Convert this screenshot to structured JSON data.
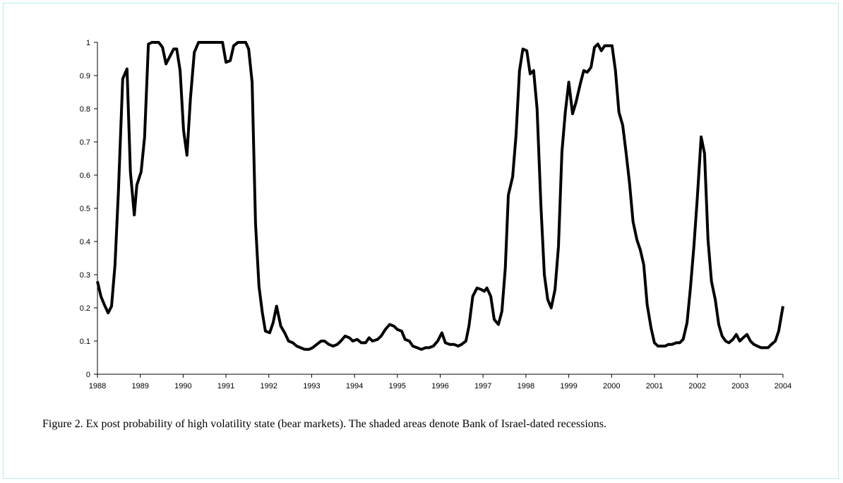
{
  "chart_data": {
    "type": "line",
    "caption": "Figure 2. Ex post probability of high volatility state (bear markets). The shaded areas denote Bank of Israel-dated recessions.",
    "x": [
      1988.0,
      1988.08,
      1988.16,
      1988.25,
      1988.33,
      1988.41,
      1988.49,
      1988.59,
      1988.69,
      1988.77,
      1988.86,
      1988.92,
      1989.02,
      1989.1,
      1989.19,
      1989.27,
      1989.43,
      1989.52,
      1989.6,
      1989.7,
      1989.78,
      1989.85,
      1989.93,
      1990.01,
      1990.09,
      1990.17,
      1990.26,
      1990.36,
      1990.67,
      1990.92,
      1991.0,
      1991.1,
      1991.18,
      1991.28,
      1991.46,
      1991.53,
      1991.61,
      1991.69,
      1991.77,
      1991.85,
      1991.92,
      1992.02,
      1992.1,
      1992.18,
      1992.28,
      1992.37,
      1992.46,
      1992.56,
      1992.65,
      1992.74,
      1992.84,
      1992.94,
      1993.02,
      1993.12,
      1993.22,
      1993.3,
      1993.4,
      1993.5,
      1993.6,
      1993.68,
      1993.78,
      1993.88,
      1993.96,
      1994.06,
      1994.16,
      1994.26,
      1994.34,
      1994.42,
      1994.54,
      1994.62,
      1994.72,
      1994.82,
      1994.92,
      1995.0,
      1995.1,
      1995.18,
      1995.28,
      1995.36,
      1995.46,
      1995.56,
      1995.66,
      1995.74,
      1995.84,
      1995.94,
      1996.04,
      1996.12,
      1996.22,
      1996.32,
      1996.42,
      1996.5,
      1996.6,
      1996.67,
      1996.76,
      1996.86,
      1996.96,
      1997.03,
      1997.09,
      1997.18,
      1997.26,
      1997.36,
      1997.44,
      1997.52,
      1997.59,
      1997.69,
      1997.77,
      1997.85,
      1997.93,
      1998.02,
      1998.1,
      1998.18,
      1998.26,
      1998.35,
      1998.43,
      1998.51,
      1998.59,
      1998.68,
      1998.76,
      1998.84,
      1998.92,
      1999.0,
      1999.09,
      1999.17,
      1999.27,
      1999.35,
      1999.43,
      1999.52,
      1999.6,
      1999.68,
      1999.76,
      1999.84,
      1999.93,
      2000.01,
      2000.09,
      2000.17,
      2000.26,
      2000.34,
      2000.42,
      2000.5,
      2000.59,
      2000.67,
      2000.75,
      2000.83,
      2000.92,
      2001.0,
      2001.08,
      2001.16,
      2001.25,
      2001.33,
      2001.41,
      2001.51,
      2001.59,
      2001.67,
      2001.76,
      2001.84,
      2001.92,
      2002.0,
      2002.09,
      2002.17,
      2002.25,
      2002.33,
      2002.42,
      2002.5,
      2002.58,
      2002.66,
      2002.74,
      2002.83,
      2002.91,
      2002.99,
      2003.07,
      2003.16,
      2003.24,
      2003.32,
      2003.4,
      2003.49,
      2003.57,
      2003.65,
      2003.73,
      2003.82,
      2003.9,
      2004.0
    ],
    "values": [
      0.28,
      0.235,
      0.21,
      0.185,
      0.205,
      0.33,
      0.55,
      0.89,
      0.92,
      0.61,
      0.48,
      0.57,
      0.61,
      0.715,
      0.995,
      1,
      1,
      0.985,
      0.935,
      0.96,
      0.98,
      0.98,
      0.915,
      0.735,
      0.66,
      0.83,
      0.97,
      1,
      1,
      1,
      0.94,
      0.945,
      0.99,
      1,
      1,
      0.98,
      0.88,
      0.455,
      0.265,
      0.185,
      0.13,
      0.125,
      0.155,
      0.205,
      0.145,
      0.125,
      0.1,
      0.095,
      0.085,
      0.08,
      0.075,
      0.075,
      0.08,
      0.09,
      0.1,
      0.1,
      0.09,
      0.085,
      0.09,
      0.1,
      0.115,
      0.11,
      0.1,
      0.105,
      0.095,
      0.095,
      0.11,
      0.1,
      0.105,
      0.115,
      0.135,
      0.15,
      0.145,
      0.135,
      0.13,
      0.105,
      0.1,
      0.085,
      0.08,
      0.075,
      0.08,
      0.08,
      0.085,
      0.1,
      0.125,
      0.095,
      0.09,
      0.09,
      0.085,
      0.09,
      0.1,
      0.145,
      0.235,
      0.26,
      0.255,
      0.25,
      0.26,
      0.235,
      0.165,
      0.15,
      0.19,
      0.32,
      0.54,
      0.595,
      0.72,
      0.915,
      0.98,
      0.975,
      0.905,
      0.915,
      0.8,
      0.51,
      0.3,
      0.225,
      0.2,
      0.255,
      0.385,
      0.67,
      0.79,
      0.88,
      0.785,
      0.82,
      0.875,
      0.915,
      0.91,
      0.925,
      0.985,
      0.995,
      0.975,
      0.99,
      0.99,
      0.99,
      0.915,
      0.79,
      0.75,
      0.665,
      0.575,
      0.46,
      0.405,
      0.375,
      0.33,
      0.21,
      0.14,
      0.095,
      0.085,
      0.085,
      0.085,
      0.09,
      0.09,
      0.095,
      0.095,
      0.105,
      0.155,
      0.26,
      0.385,
      0.53,
      0.715,
      0.665,
      0.405,
      0.28,
      0.225,
      0.15,
      0.115,
      0.1,
      0.095,
      0.105,
      0.12,
      0.1,
      0.11,
      0.12,
      0.1,
      0.09,
      0.085,
      0.08,
      0.08,
      0.08,
      0.09,
      0.1,
      0.13,
      0.205
    ],
    "color": "#000000",
    "xlim": [
      1988,
      2004
    ],
    "xticks": [
      1988,
      1989,
      1990,
      1991,
      1992,
      1993,
      1994,
      1995,
      1996,
      1997,
      1998,
      1999,
      2000,
      2001,
      2002,
      2003,
      2004
    ],
    "ylim": [
      0,
      1
    ],
    "yticks": [
      0,
      0.1,
      0.2,
      0.3,
      0.4,
      0.5,
      0.6,
      0.7,
      0.8,
      0.9,
      1
    ]
  }
}
